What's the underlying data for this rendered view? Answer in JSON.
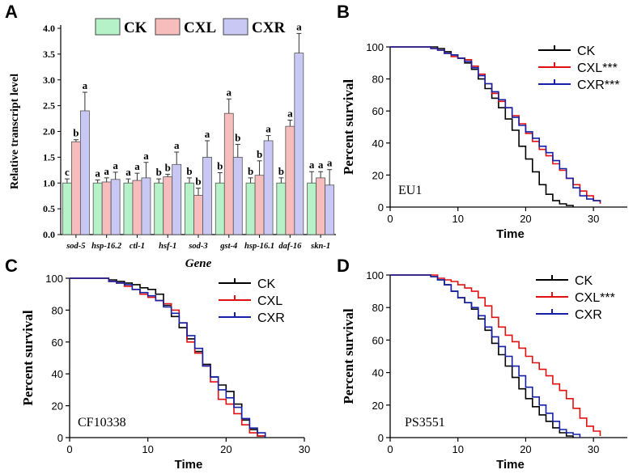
{
  "chart_data": [
    {
      "panel": "A",
      "type": "bar",
      "ylabel": "Relative transcript level",
      "xlabel": "Gene",
      "ylim": [
        0,
        4.0
      ],
      "yticks": [
        "0.0",
        "0.5",
        "1.0",
        "1.5",
        "2.0",
        "2.5",
        "3.0",
        "3.5",
        "4.0"
      ],
      "categories": [
        "sod-5",
        "hsp-16.2",
        "ctl-1",
        "hsf-1",
        "sod-3",
        "gst-4",
        "hsp-16.1",
        "daf-16",
        "skn-1"
      ],
      "legend": [
        "CK",
        "CXL",
        "CXR"
      ],
      "colors": [
        "#b6f2c8",
        "#f7bcbc",
        "#c9c8f4"
      ],
      "series": [
        {
          "name": "CK",
          "values": [
            1.0,
            1.0,
            1.0,
            1.0,
            1.0,
            1.0,
            1.0,
            1.0,
            1.0
          ],
          "errors": [
            0.08,
            0.06,
            0.08,
            0.08,
            0.1,
            0.2,
            0.1,
            0.1,
            0.22
          ],
          "letters": [
            "c",
            "a",
            "a",
            "b",
            "b",
            "b",
            "b",
            "b",
            "a"
          ]
        },
        {
          "name": "CXL",
          "values": [
            1.8,
            1.02,
            1.05,
            1.12,
            0.76,
            2.35,
            1.15,
            2.1,
            1.1
          ],
          "errors": [
            0.04,
            0.08,
            0.14,
            0.05,
            0.14,
            0.28,
            0.28,
            0.12,
            0.12
          ],
          "letters": [
            "b",
            "a",
            "a",
            "b",
            "b",
            "a",
            "b",
            "a",
            "a"
          ]
        },
        {
          "name": "CXR",
          "values": [
            2.4,
            1.07,
            1.1,
            1.36,
            1.5,
            1.5,
            1.82,
            3.52,
            0.96
          ],
          "errors": [
            0.36,
            0.14,
            0.3,
            0.24,
            0.32,
            0.25,
            0.1,
            0.38,
            0.3
          ],
          "letters": [
            "a",
            "a",
            "a",
            "a",
            "a",
            "b",
            "a",
            "a",
            "a"
          ]
        }
      ]
    },
    {
      "panel": "B",
      "type": "line",
      "annotation": "EU1",
      "xlabel": "Time",
      "ylabel": "Percent survival",
      "xlim": [
        0,
        35
      ],
      "ylim": [
        0,
        100
      ],
      "xticks": [
        0,
        10,
        20,
        30
      ],
      "yticks": [
        0,
        20,
        40,
        60,
        80,
        100
      ],
      "series": [
        {
          "name": "CK",
          "color": "#000000",
          "points": [
            [
              0,
              100
            ],
            [
              6,
              100
            ],
            [
              7,
              99
            ],
            [
              8,
              97
            ],
            [
              9,
              95
            ],
            [
              10,
              93
            ],
            [
              11,
              90
            ],
            [
              12,
              86
            ],
            [
              13,
              80
            ],
            [
              14,
              74
            ],
            [
              15,
              68
            ],
            [
              16,
              62
            ],
            [
              17,
              55
            ],
            [
              18,
              48
            ],
            [
              19,
              38
            ],
            [
              20,
              30
            ],
            [
              21,
              22
            ],
            [
              22,
              14
            ],
            [
              23,
              8
            ],
            [
              24,
              4
            ],
            [
              25,
              2
            ],
            [
              26,
              1
            ],
            [
              27,
              0
            ]
          ]
        },
        {
          "name": "CXL***",
          "color": "#e01010",
          "points": [
            [
              0,
              100
            ],
            [
              5,
              100
            ],
            [
              6,
              99
            ],
            [
              7,
              98
            ],
            [
              8,
              96
            ],
            [
              9,
              94
            ],
            [
              10,
              93
            ],
            [
              11,
              92
            ],
            [
              12,
              88
            ],
            [
              13,
              83
            ],
            [
              14,
              77
            ],
            [
              15,
              71
            ],
            [
              16,
              66
            ],
            [
              17,
              62
            ],
            [
              18,
              57
            ],
            [
              19,
              52
            ],
            [
              20,
              46
            ],
            [
              21,
              41
            ],
            [
              22,
              36
            ],
            [
              23,
              32
            ],
            [
              24,
              27
            ],
            [
              25,
              23
            ],
            [
              26,
              18
            ],
            [
              27,
              14
            ],
            [
              28,
              10
            ],
            [
              29,
              7
            ],
            [
              30,
              4
            ],
            [
              31,
              2
            ]
          ]
        },
        {
          "name": "CXR***",
          "color": "#1520a6",
          "points": [
            [
              0,
              100
            ],
            [
              5,
              100
            ],
            [
              6,
              99
            ],
            [
              7,
              98
            ],
            [
              8,
              96
            ],
            [
              9,
              95
            ],
            [
              10,
              93
            ],
            [
              11,
              91
            ],
            [
              12,
              87
            ],
            [
              13,
              82
            ],
            [
              14,
              77
            ],
            [
              15,
              72
            ],
            [
              16,
              67
            ],
            [
              17,
              62
            ],
            [
              18,
              56
            ],
            [
              19,
              51
            ],
            [
              20,
              47
            ],
            [
              21,
              43
            ],
            [
              22,
              38
            ],
            [
              23,
              34
            ],
            [
              24,
              29
            ],
            [
              25,
              24
            ],
            [
              26,
              18
            ],
            [
              27,
              12
            ],
            [
              28,
              7
            ],
            [
              29,
              5
            ],
            [
              30,
              4
            ],
            [
              31,
              3
            ]
          ]
        }
      ]
    },
    {
      "panel": "C",
      "type": "line",
      "annotation": "CF10338",
      "xlabel": "Time",
      "ylabel": "Percent survival",
      "xlim": [
        0,
        30
      ],
      "ylim": [
        0,
        100
      ],
      "xticks": [
        0,
        10,
        20,
        30
      ],
      "yticks": [
        0,
        20,
        40,
        60,
        80,
        100
      ],
      "series": [
        {
          "name": "CK",
          "color": "#000000",
          "points": [
            [
              0,
              100
            ],
            [
              4,
              100
            ],
            [
              5,
              99
            ],
            [
              6,
              98
            ],
            [
              7,
              97
            ],
            [
              8,
              96
            ],
            [
              9,
              94
            ],
            [
              10,
              93
            ],
            [
              11,
              90
            ],
            [
              12,
              83
            ],
            [
              13,
              76
            ],
            [
              14,
              69
            ],
            [
              15,
              62
            ],
            [
              16,
              54
            ],
            [
              17,
              46
            ],
            [
              18,
              38
            ],
            [
              19,
              33
            ],
            [
              20,
              29
            ],
            [
              21,
              21
            ],
            [
              22,
              11
            ],
            [
              23,
              5
            ],
            [
              24,
              1
            ],
            [
              25,
              0
            ]
          ]
        },
        {
          "name": "CXL",
          "color": "#e01010",
          "points": [
            [
              0,
              100
            ],
            [
              4,
              100
            ],
            [
              5,
              98
            ],
            [
              6,
              97
            ],
            [
              7,
              95
            ],
            [
              8,
              93
            ],
            [
              9,
              90
            ],
            [
              10,
              88
            ],
            [
              11,
              86
            ],
            [
              12,
              84
            ],
            [
              13,
              80
            ],
            [
              14,
              72
            ],
            [
              15,
              60
            ],
            [
              16,
              53
            ],
            [
              17,
              45
            ],
            [
              18,
              35
            ],
            [
              19,
              24
            ],
            [
              20,
              21
            ],
            [
              21,
              15
            ],
            [
              22,
              8
            ],
            [
              23,
              3
            ],
            [
              24,
              1
            ],
            [
              25,
              0
            ]
          ]
        },
        {
          "name": "CXR",
          "color": "#1520a6",
          "points": [
            [
              0,
              100
            ],
            [
              4,
              100
            ],
            [
              5,
              98
            ],
            [
              6,
              97
            ],
            [
              7,
              96
            ],
            [
              8,
              93
            ],
            [
              9,
              91
            ],
            [
              10,
              89
            ],
            [
              11,
              86
            ],
            [
              12,
              82
            ],
            [
              13,
              78
            ],
            [
              14,
              72
            ],
            [
              15,
              64
            ],
            [
              16,
              56
            ],
            [
              17,
              45
            ],
            [
              18,
              38
            ],
            [
              19,
              30
            ],
            [
              20,
              25
            ],
            [
              21,
              19
            ],
            [
              22,
              12
            ],
            [
              23,
              6
            ],
            [
              24,
              3
            ],
            [
              25,
              0
            ]
          ]
        }
      ]
    },
    {
      "panel": "D",
      "type": "line",
      "annotation": "PS3551",
      "xlabel": "Time",
      "ylabel": "Percent survival",
      "xlim": [
        0,
        35
      ],
      "ylim": [
        0,
        100
      ],
      "xticks": [
        0,
        10,
        20,
        30
      ],
      "yticks": [
        0,
        20,
        40,
        60,
        80,
        100
      ],
      "series": [
        {
          "name": "CK",
          "color": "#000000",
          "points": [
            [
              0,
              100
            ],
            [
              5,
              100
            ],
            [
              6,
              99
            ],
            [
              7,
              97
            ],
            [
              8,
              94
            ],
            [
              9,
              90
            ],
            [
              10,
              86
            ],
            [
              11,
              83
            ],
            [
              12,
              79
            ],
            [
              13,
              73
            ],
            [
              14,
              66
            ],
            [
              15,
              58
            ],
            [
              16,
              51
            ],
            [
              17,
              44
            ],
            [
              18,
              37
            ],
            [
              19,
              30
            ],
            [
              20,
              24
            ],
            [
              21,
              19
            ],
            [
              22,
              14
            ],
            [
              23,
              10
            ],
            [
              24,
              6
            ],
            [
              25,
              3
            ],
            [
              26,
              1
            ],
            [
              27,
              0
            ]
          ]
        },
        {
          "name": "CXL***",
          "color": "#e01010",
          "points": [
            [
              0,
              100
            ],
            [
              6,
              100
            ],
            [
              7,
              98
            ],
            [
              8,
              97
            ],
            [
              9,
              96
            ],
            [
              10,
              94
            ],
            [
              11,
              92
            ],
            [
              12,
              90
            ],
            [
              13,
              86
            ],
            [
              14,
              81
            ],
            [
              15,
              74
            ],
            [
              16,
              68
            ],
            [
              17,
              63
            ],
            [
              18,
              59
            ],
            [
              19,
              55
            ],
            [
              20,
              50
            ],
            [
              21,
              46
            ],
            [
              22,
              42
            ],
            [
              23,
              38
            ],
            [
              24,
              33
            ],
            [
              25,
              29
            ],
            [
              26,
              24
            ],
            [
              27,
              18
            ],
            [
              28,
              12
            ],
            [
              29,
              7
            ],
            [
              30,
              4
            ],
            [
              31,
              1
            ]
          ]
        },
        {
          "name": "CXR",
          "color": "#1520a6",
          "points": [
            [
              0,
              100
            ],
            [
              5,
              100
            ],
            [
              6,
              99
            ],
            [
              7,
              97
            ],
            [
              8,
              94
            ],
            [
              9,
              90
            ],
            [
              10,
              86
            ],
            [
              11,
              83
            ],
            [
              12,
              80
            ],
            [
              13,
              75
            ],
            [
              14,
              68
            ],
            [
              15,
              62
            ],
            [
              16,
              56
            ],
            [
              17,
              50
            ],
            [
              18,
              44
            ],
            [
              19,
              38
            ],
            [
              20,
              31
            ],
            [
              21,
              25
            ],
            [
              22,
              20
            ],
            [
              23,
              15
            ],
            [
              24,
              10
            ],
            [
              25,
              5
            ],
            [
              26,
              3
            ],
            [
              27,
              2
            ],
            [
              28,
              0
            ]
          ]
        }
      ]
    }
  ]
}
